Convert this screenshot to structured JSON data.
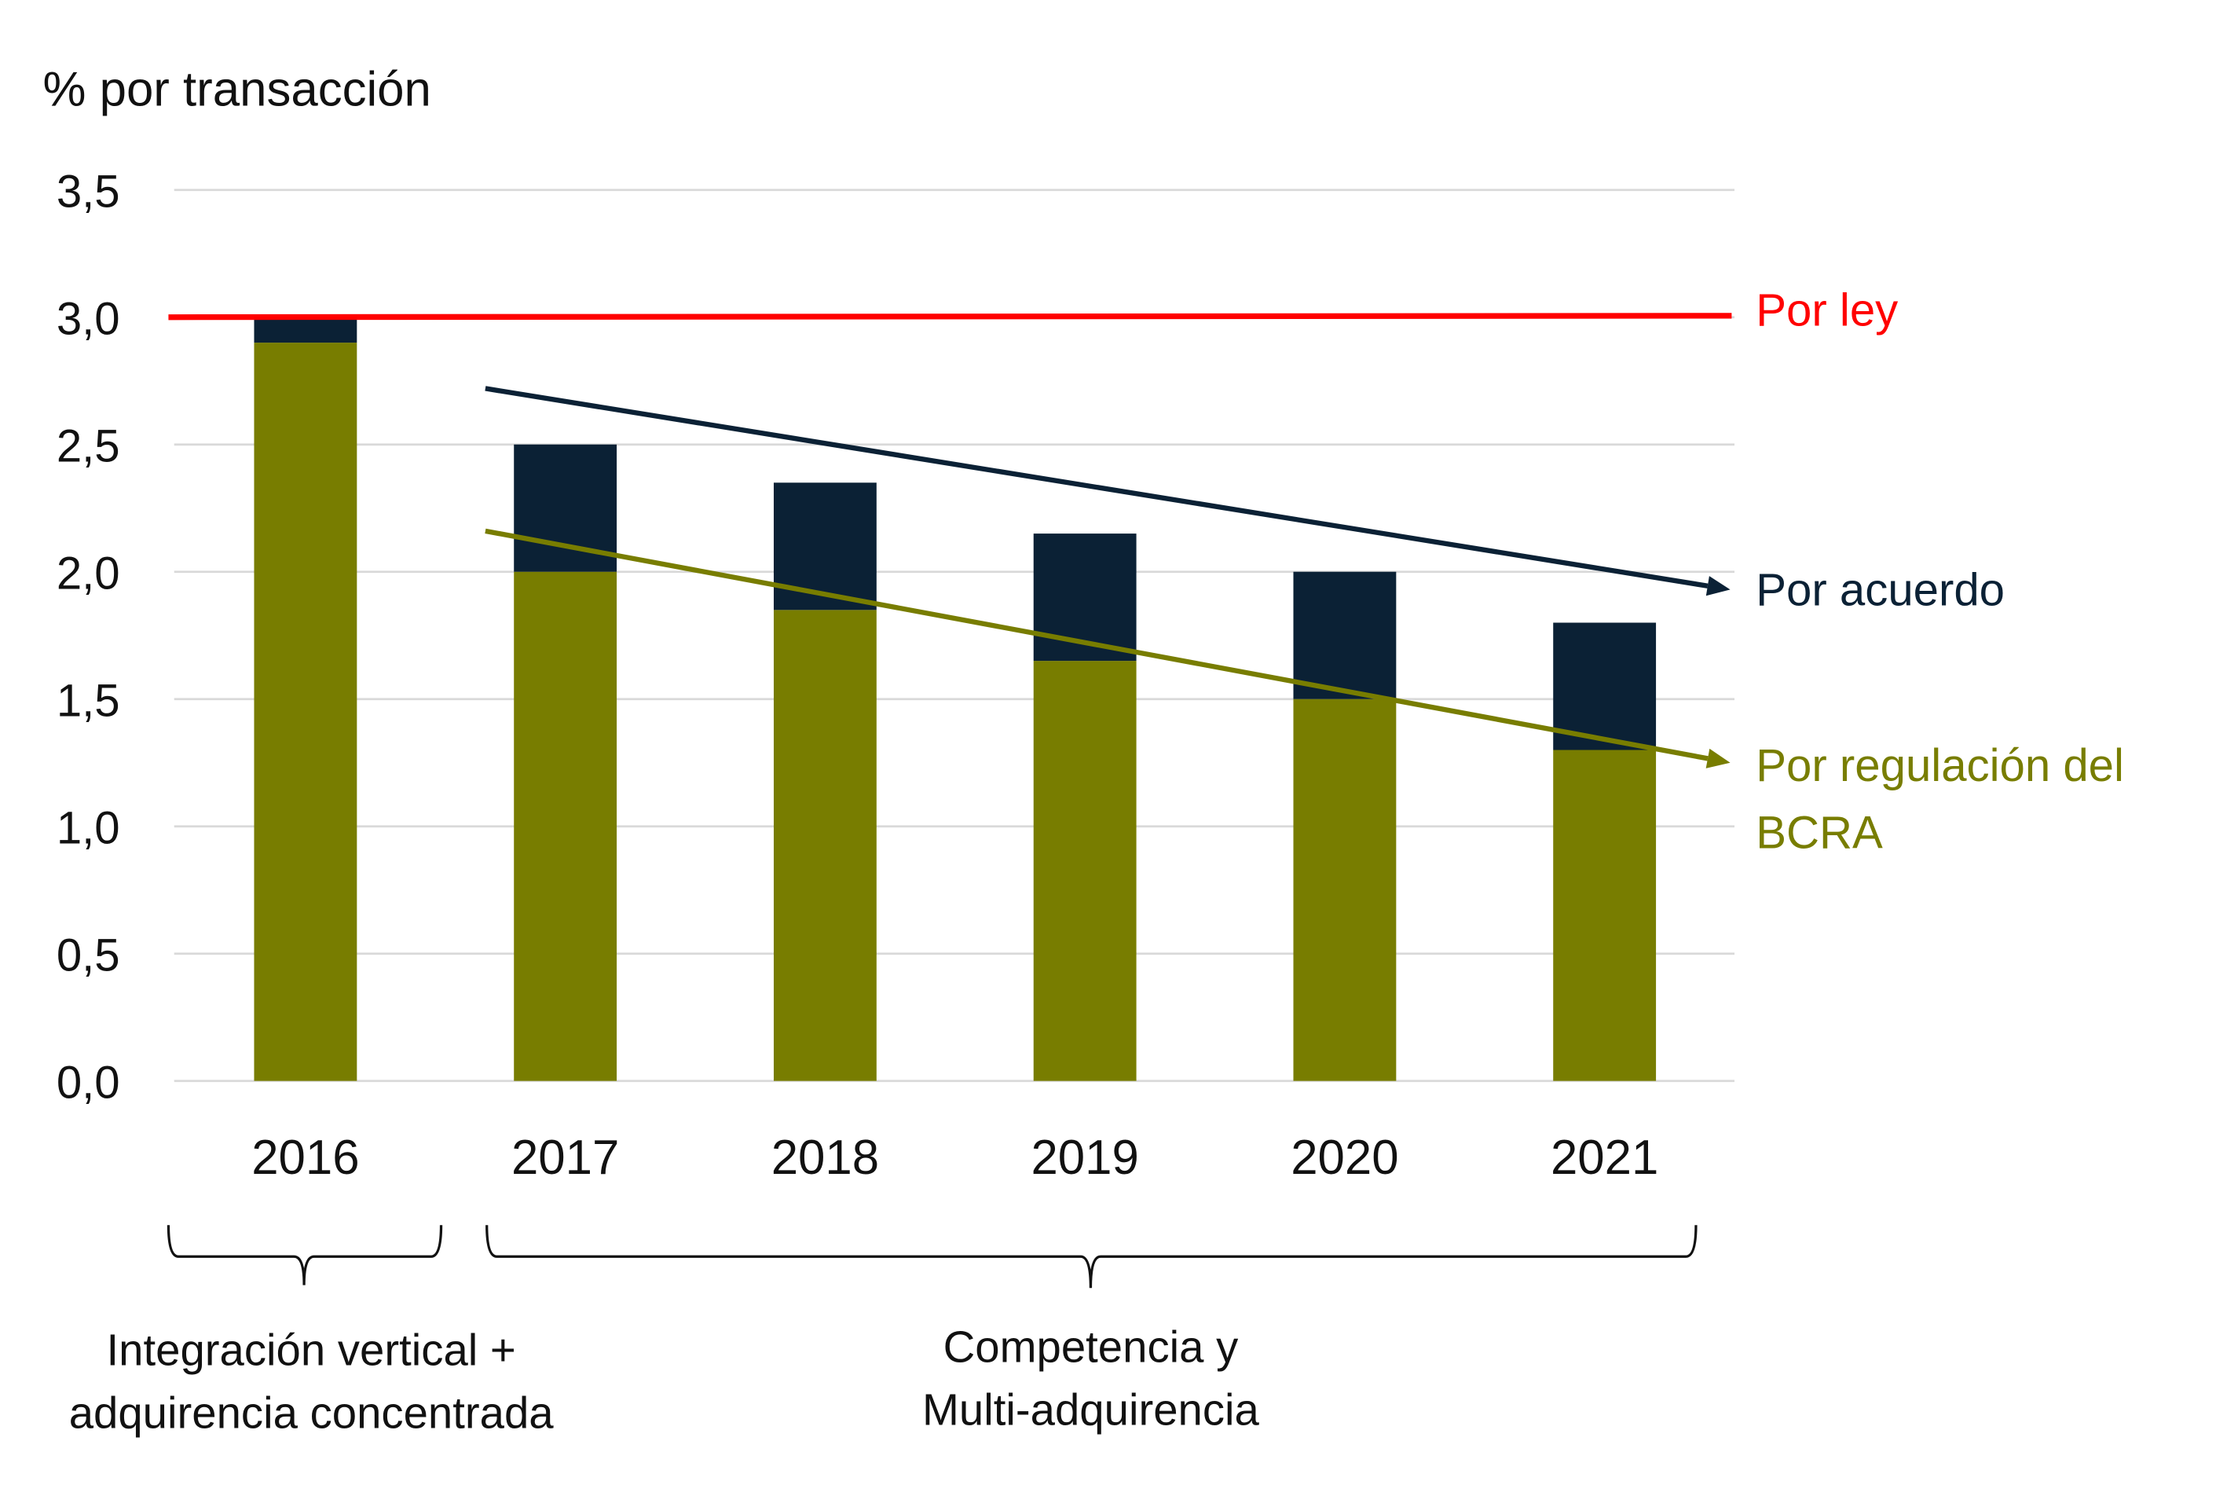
{
  "chart_data": {
    "type": "bar",
    "stacked": true,
    "ylabel": "% por transacción",
    "ylim": [
      0,
      3.5
    ],
    "yticks": [
      "0,0",
      "0,5",
      "1,0",
      "1,5",
      "2,0",
      "2,5",
      "3,0",
      "3,5"
    ],
    "ytick_values": [
      0,
      0.5,
      1,
      1.5,
      2,
      2.5,
      3,
      3.5
    ],
    "grid": true,
    "categories": [
      "2016",
      "2017",
      "2018",
      "2019",
      "2020",
      "2021"
    ],
    "series": [
      {
        "color": "#787d00",
        "values": [
          2.9,
          2.0,
          1.85,
          1.65,
          1.5,
          1.3
        ]
      },
      {
        "color": "#0b2135",
        "values": [
          0.1,
          0.5,
          0.5,
          0.5,
          0.5,
          0.5
        ]
      }
    ],
    "annotations": {
      "por_ley": {
        "label": "Por ley",
        "value": 3.0,
        "color": "#ff0000"
      },
      "por_acuerdo": {
        "label": "Por acuerdo",
        "from": 2.72,
        "to": 1.93,
        "color": "#0b2135"
      },
      "por_regulacion": {
        "label_line1": "Por regulación del",
        "label_line2": "BCRA",
        "from": 2.16,
        "to": 1.25,
        "color": "#787d00"
      }
    },
    "groups": [
      {
        "line1": "Integración vertical +",
        "line2": "adquirencia concentrada",
        "categories": [
          "2016"
        ]
      },
      {
        "line1": "Competencia y",
        "line2": "Multi-adquirencia",
        "categories": [
          "2017",
          "2018",
          "2019",
          "2020",
          "2021"
        ]
      }
    ]
  }
}
